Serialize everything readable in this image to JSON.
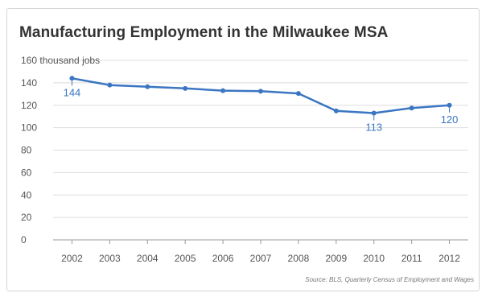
{
  "chart_data": {
    "type": "line",
    "title": "Manufacturing Employment in the Milwaukee MSA",
    "ylabel": "thousand jobs",
    "xlabel": "",
    "x": [
      "2002",
      "2003",
      "2004",
      "2005",
      "2006",
      "2007",
      "2008",
      "2009",
      "2010",
      "2011",
      "2012"
    ],
    "series": [
      {
        "values": [
          144,
          138,
          136.5,
          135,
          133,
          132.5,
          130.5,
          115,
          113,
          117.5,
          120
        ]
      }
    ],
    "yticks": [
      0,
      20,
      40,
      60,
      80,
      100,
      120,
      140,
      160
    ],
    "ylim": [
      0,
      160
    ],
    "grid": "horizontal",
    "annotations": [
      {
        "x": "2002",
        "label": "144"
      },
      {
        "x": "2010",
        "label": "113"
      },
      {
        "x": "2012",
        "label": "120"
      }
    ],
    "source": "Source: BLS, Quarterly Census of Employment and Wages",
    "line_color": "#3b76c2",
    "grid_color": "#dddddd"
  }
}
